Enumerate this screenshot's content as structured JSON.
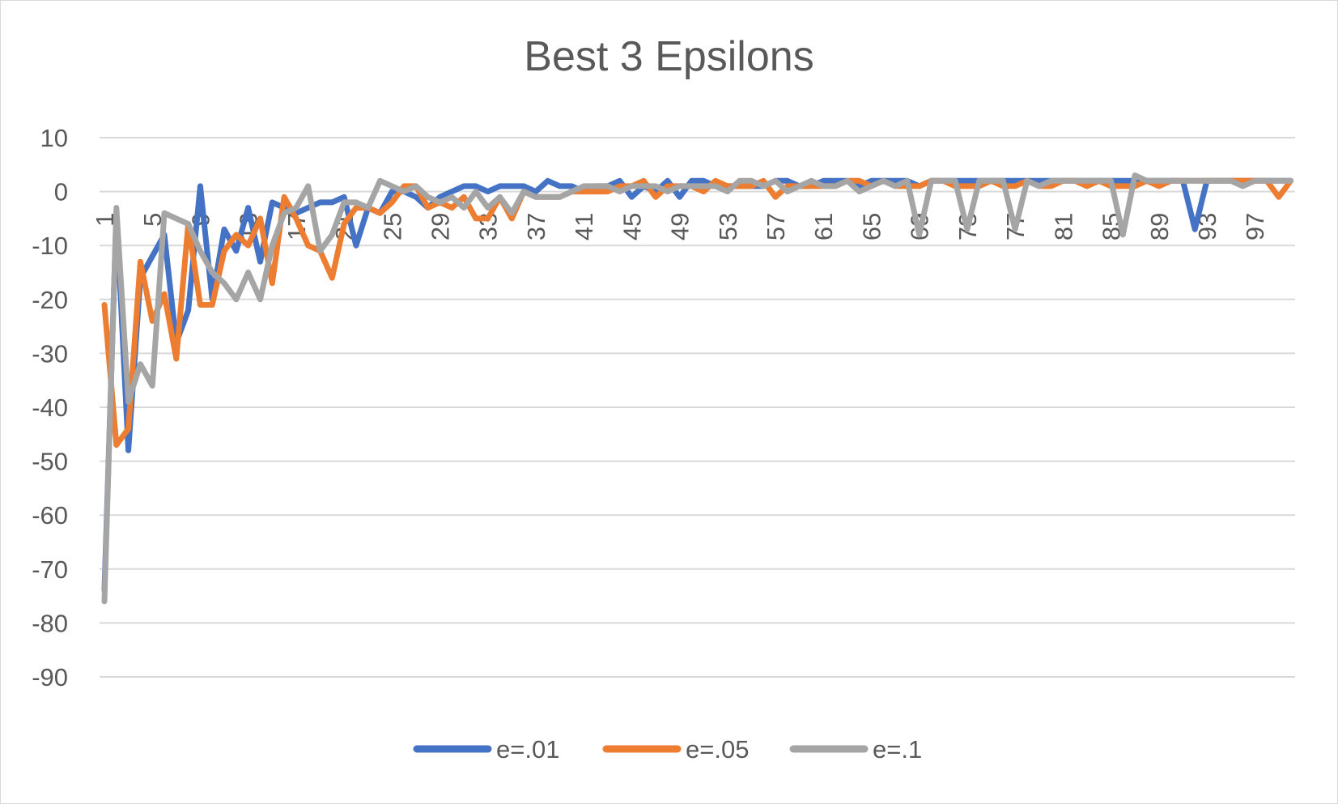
{
  "chart_data": {
    "type": "line",
    "title": "Best 3 Epsilons",
    "xlabel": "",
    "ylabel": "",
    "ylim": [
      -90,
      10
    ],
    "yticks": [
      10,
      0,
      -10,
      -20,
      -30,
      -40,
      -50,
      -60,
      -70,
      -80,
      -90
    ],
    "xticks": [
      1,
      5,
      9,
      13,
      17,
      21,
      25,
      29,
      33,
      37,
      41,
      45,
      49,
      53,
      57,
      61,
      65,
      69,
      73,
      77,
      81,
      85,
      89,
      93,
      97
    ],
    "x_count": 100,
    "grid": true,
    "legend_position": "bottom",
    "series": [
      {
        "name": "e=.01",
        "color": "#4472C4",
        "values": [
          -74,
          -4,
          -48,
          -16,
          -12,
          -8,
          -28,
          -22,
          1,
          -20,
          -7,
          -11,
          -3,
          -13,
          -2,
          -3,
          -4,
          -3,
          -2,
          -2,
          -1,
          -10,
          -3,
          -4,
          0,
          0,
          -1,
          -3,
          -1,
          0,
          1,
          1,
          0,
          1,
          1,
          1,
          0,
          2,
          1,
          1,
          0,
          1,
          1,
          2,
          -1,
          1,
          0,
          2,
          -1,
          2,
          2,
          1,
          1,
          1,
          1,
          1,
          2,
          2,
          1,
          1,
          2,
          2,
          2,
          1,
          2,
          2,
          2,
          2,
          1,
          2,
          2,
          2,
          2,
          2,
          2,
          2,
          2,
          2,
          2,
          2,
          2,
          2,
          2,
          2,
          2,
          2,
          2,
          2,
          2,
          2,
          2,
          -7,
          2,
          2,
          2,
          2,
          2,
          2,
          2,
          2
        ]
      },
      {
        "name": "e=.05",
        "color": "#ED7D31",
        "values": [
          -21,
          -47,
          -44,
          -13,
          -24,
          -19,
          -31,
          -6,
          -21,
          -21,
          -11,
          -8,
          -10,
          -5,
          -17,
          -1,
          -5,
          -10,
          -11,
          -16,
          -6,
          -3,
          -3,
          -4,
          -2,
          1,
          1,
          -3,
          -2,
          -3,
          -1,
          -5,
          -5,
          -1,
          -5,
          0,
          -1,
          -1,
          -1,
          0,
          0,
          0,
          0,
          1,
          1,
          2,
          -1,
          1,
          1,
          1,
          0,
          2,
          1,
          1,
          1,
          2,
          -1,
          1,
          1,
          1,
          1,
          1,
          2,
          2,
          1,
          2,
          1,
          1,
          1,
          2,
          2,
          1,
          1,
          1,
          2,
          1,
          1,
          2,
          1,
          1,
          2,
          2,
          1,
          2,
          1,
          1,
          1,
          2,
          1,
          2,
          2,
          2,
          2,
          2,
          2,
          2,
          2,
          2,
          -1,
          2
        ]
      },
      {
        "name": "e=.1",
        "color": "#A5A5A5",
        "values": [
          -76,
          -3,
          -39,
          -32,
          -36,
          -4,
          -5,
          -6,
          -11,
          -15,
          -17,
          -20,
          -15,
          -20,
          -10,
          -4,
          -3,
          1,
          -11,
          -8,
          -2,
          -2,
          -3,
          2,
          1,
          0,
          1,
          -1,
          -2,
          -1,
          -3,
          0,
          -3,
          -1,
          -4,
          0,
          -1,
          -1,
          -1,
          0,
          1,
          1,
          1,
          0,
          1,
          1,
          1,
          0,
          1,
          1,
          1,
          1,
          0,
          2,
          2,
          1,
          2,
          0,
          1,
          2,
          1,
          1,
          2,
          0,
          1,
          2,
          1,
          2,
          -8,
          2,
          2,
          2,
          -7,
          2,
          2,
          2,
          -7,
          2,
          1,
          2,
          2,
          2,
          2,
          2,
          2,
          -8,
          3,
          2,
          2,
          2,
          2,
          2,
          2,
          2,
          2,
          1,
          2,
          2,
          2,
          2
        ]
      }
    ]
  }
}
